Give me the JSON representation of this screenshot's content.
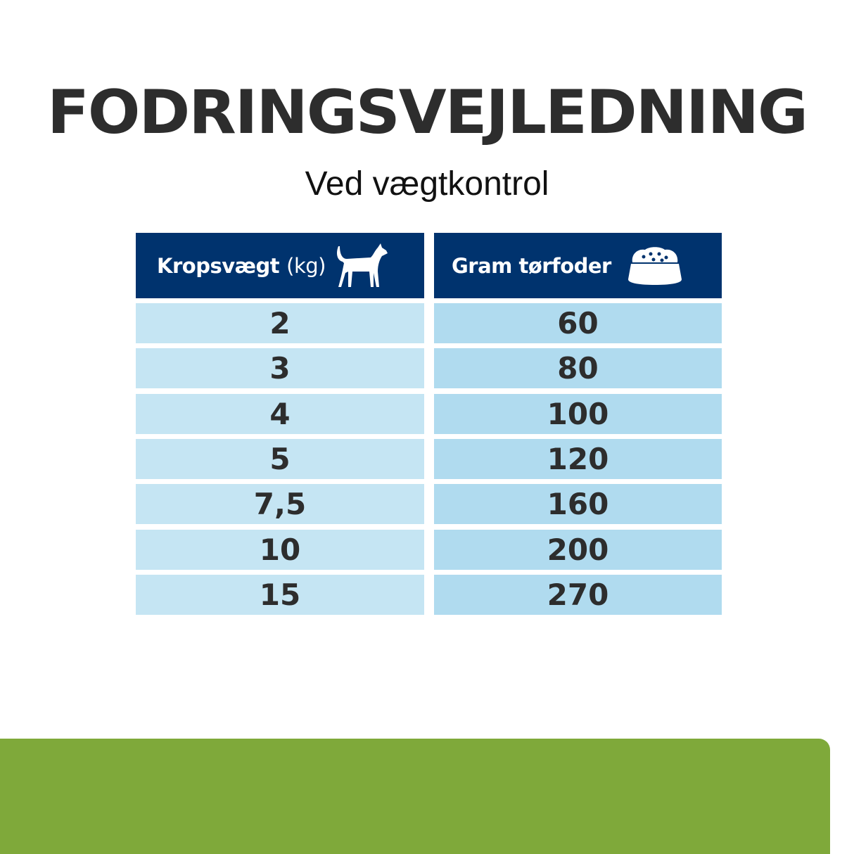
{
  "title": "FODRINGSVEJLEDNING",
  "subtitle": "Ved vægtkontrol",
  "table": {
    "header_left": {
      "label": "Kropsvægt",
      "unit": "(kg)",
      "icon": "dog-icon"
    },
    "header_right": {
      "label": "Gram tørfoder",
      "icon": "food-bowl-icon"
    },
    "rows": [
      {
        "weight": "2",
        "grams": "60"
      },
      {
        "weight": "3",
        "grams": "80"
      },
      {
        "weight": "4",
        "grams": "100"
      },
      {
        "weight": "5",
        "grams": "120"
      },
      {
        "weight": "7,5",
        "grams": "160"
      },
      {
        "weight": "10",
        "grams": "200"
      },
      {
        "weight": "15",
        "grams": "270"
      }
    ]
  },
  "colors": {
    "header": "#00336e",
    "cell_left": "#c5e5f3",
    "cell_right": "#b0dbef",
    "footer_band": "#7fa93a"
  }
}
